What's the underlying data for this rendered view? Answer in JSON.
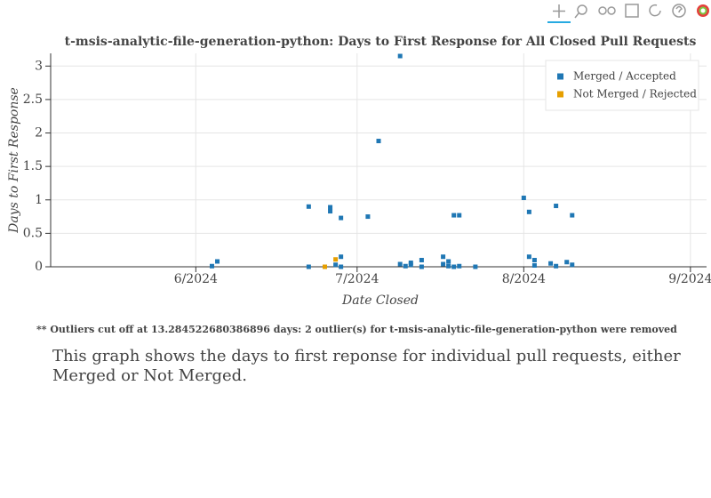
{
  "chart_data": {
    "type": "scatter",
    "title": "t-msis-analytic-file-generation-python: Days to First Response for All Closed Pull Requests",
    "x_label": "Date Closed",
    "y_label": "Days to First Response",
    "xlim": [
      "2024-05-05",
      "2024-09-04"
    ],
    "xticks": [
      {
        "value": "2024-06-01",
        "label": "6/2024"
      },
      {
        "value": "2024-07-01",
        "label": "7/2024"
      },
      {
        "value": "2024-08-01",
        "label": "8/2024"
      },
      {
        "value": "2024-09-01",
        "label": "9/2024"
      }
    ],
    "ylim": [
      0,
      3.19
    ],
    "yticks": [
      0,
      0.5,
      1,
      1.5,
      2,
      2.5,
      3
    ],
    "grid": true,
    "legend": "top-right",
    "series": [
      {
        "name": "Merged / Accepted",
        "color": "#1f77b4",
        "x": [
          "2024-06-04",
          "2024-06-05",
          "2024-06-22",
          "2024-06-22",
          "2024-06-25",
          "2024-06-26",
          "2024-06-26",
          "2024-06-27",
          "2024-06-28",
          "2024-06-28",
          "2024-06-28",
          "2024-07-03",
          "2024-07-05",
          "2024-07-09",
          "2024-07-09",
          "2024-07-10",
          "2024-07-11",
          "2024-07-11",
          "2024-07-13",
          "2024-07-13",
          "2024-07-17",
          "2024-07-17",
          "2024-07-18",
          "2024-07-18",
          "2024-07-19",
          "2024-07-19",
          "2024-07-20",
          "2024-07-20",
          "2024-07-23",
          "2024-08-01",
          "2024-08-02",
          "2024-08-02",
          "2024-08-03",
          "2024-08-03",
          "2024-08-06",
          "2024-08-07",
          "2024-08-07",
          "2024-08-09",
          "2024-08-10",
          "2024-08-10"
        ],
        "values": [
          0.01,
          0.08,
          0.9,
          0,
          0,
          0.89,
          0.83,
          0.03,
          0,
          0.73,
          0.15,
          0.75,
          1.88,
          3.15,
          0.04,
          0.01,
          0.03,
          0.06,
          0.1,
          0,
          0.15,
          0.04,
          0.01,
          0.08,
          0.77,
          0,
          0.77,
          0.01,
          0,
          1.03,
          0.82,
          0.15,
          0.02,
          0.1,
          0.05,
          0.91,
          0.01,
          0.07,
          0.77,
          0.03
        ]
      },
      {
        "name": "Not Merged / Rejected",
        "color": "#e69f00",
        "x": [
          "2024-06-25",
          "2024-06-27"
        ],
        "values": [
          0,
          0.11
        ]
      }
    ],
    "footnote": "** Outliers cut off at 13.284522680386896 days: 2 outlier(s) for t-msis-analytic-file-generation-python were removed",
    "description": "This graph shows the days to first reponse for individual pull requests, either Merged or Not Merged."
  }
}
